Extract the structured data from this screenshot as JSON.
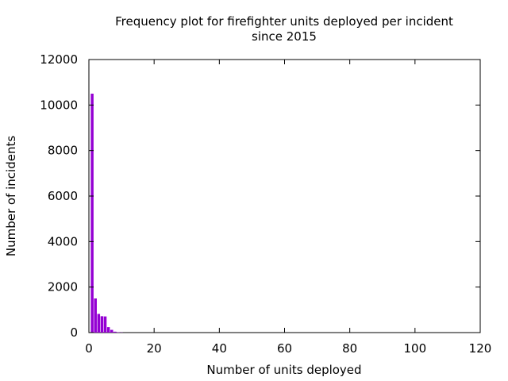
{
  "chart_data": {
    "type": "bar",
    "title": [
      "Frequency plot for firefighter units deployed per incident",
      "since 2015"
    ],
    "xlabel": "Number of units deployed",
    "ylabel": "Number of incidents",
    "xlim": [
      0,
      120
    ],
    "ylim": [
      0,
      12000
    ],
    "xticks": [
      0,
      20,
      40,
      60,
      80,
      100,
      120
    ],
    "yticks": [
      0,
      2000,
      4000,
      6000,
      8000,
      10000,
      12000
    ],
    "grid": false,
    "bar_color": "#9400d3",
    "x": [
      1,
      2,
      3,
      4,
      5,
      6,
      7,
      8,
      9,
      10
    ],
    "values": [
      10500,
      1500,
      820,
      720,
      710,
      240,
      120,
      40,
      15,
      8
    ]
  }
}
